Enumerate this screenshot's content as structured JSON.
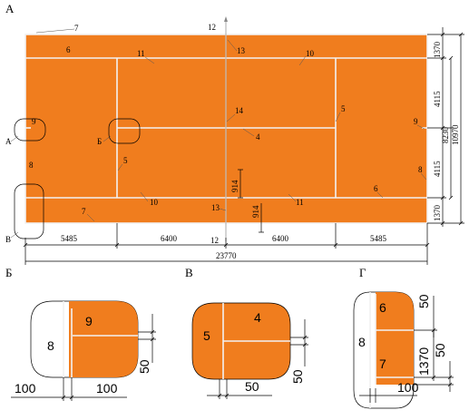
{
  "views": {
    "main": "А",
    "detail_b": "Б",
    "detail_v": "В",
    "detail_g": "Г"
  },
  "callouts": {
    "n4": "4",
    "n5": "5",
    "n6": "6",
    "n7": "7",
    "n8": "8",
    "n9": "9",
    "n10": "10",
    "n11": "11",
    "n12": "12",
    "n13": "13",
    "n14": "14",
    "a": "А",
    "b": "Б",
    "v": "В"
  },
  "dimensions": {
    "d5485": "5485",
    "d6400": "6400",
    "d23770": "23770",
    "d1370": "1370",
    "d4115": "4115",
    "d8230": "8230",
    "d10970": "10970",
    "d914": "914",
    "d100": "100",
    "d50": "50"
  },
  "colors": {
    "court": "#f07d1e",
    "line": "#f2f2f2"
  }
}
